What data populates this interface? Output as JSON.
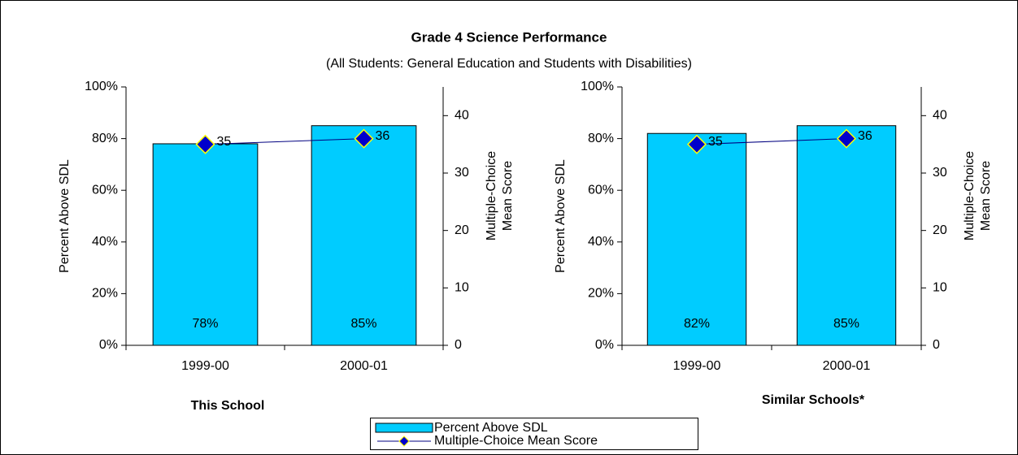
{
  "title": "Grade 4 Science Performance",
  "subtitle": "(All Students: General Education and Students with Disabilities)",
  "chart_data": [
    {
      "type": "bar",
      "xlabel": "This School",
      "ylabel": "Percent Above SDL",
      "y2label": [
        "Multiple-Choice",
        "Mean Score"
      ],
      "categories": [
        "1999-00",
        "2000-01"
      ],
      "series": [
        {
          "name": "Percent Above SDL",
          "color": "#00ccff",
          "values": [
            78,
            85
          ],
          "value_labels": [
            "78%",
            "85%"
          ]
        },
        {
          "name": "Multiple-Choice Mean Score",
          "type": "line",
          "axis": "y2",
          "color": "#000080",
          "marker_color": "#0000cc",
          "marker_edge": "#ffff00",
          "values": [
            35,
            36
          ]
        }
      ],
      "ylim": [
        0,
        100
      ],
      "yticks": [
        {
          "value": 0,
          "label": "0%"
        },
        {
          "value": 20,
          "label": "20%"
        },
        {
          "value": 40,
          "label": "40%"
        },
        {
          "value": 60,
          "label": "60%"
        },
        {
          "value": 80,
          "label": "80%"
        },
        {
          "value": 100,
          "label": "100%"
        }
      ],
      "y2lim": [
        0,
        45
      ],
      "y2ticks": [
        0,
        10,
        20,
        30,
        40
      ]
    },
    {
      "type": "bar",
      "xlabel": "Similar Schools*",
      "ylabel": "Percent Above SDL",
      "y2label": [
        "Multiple-Choice",
        "Mean Score"
      ],
      "categories": [
        "1999-00",
        "2000-01"
      ],
      "series": [
        {
          "name": "Percent Above SDL",
          "color": "#00ccff",
          "values": [
            82,
            85
          ],
          "value_labels": [
            "82%",
            "85%"
          ]
        },
        {
          "name": "Multiple-Choice Mean Score",
          "type": "line",
          "axis": "y2",
          "color": "#000080",
          "marker_color": "#0000cc",
          "marker_edge": "#ffff00",
          "values": [
            35,
            36
          ]
        }
      ],
      "ylim": [
        0,
        100
      ],
      "yticks": [
        {
          "value": 0,
          "label": "0%"
        },
        {
          "value": 20,
          "label": "20%"
        },
        {
          "value": 40,
          "label": "40%"
        },
        {
          "value": 60,
          "label": "60%"
        },
        {
          "value": 80,
          "label": "80%"
        },
        {
          "value": 100,
          "label": "100%"
        }
      ],
      "y2lim": [
        0,
        45
      ],
      "y2ticks": [
        0,
        10,
        20,
        30,
        40
      ]
    }
  ]
}
